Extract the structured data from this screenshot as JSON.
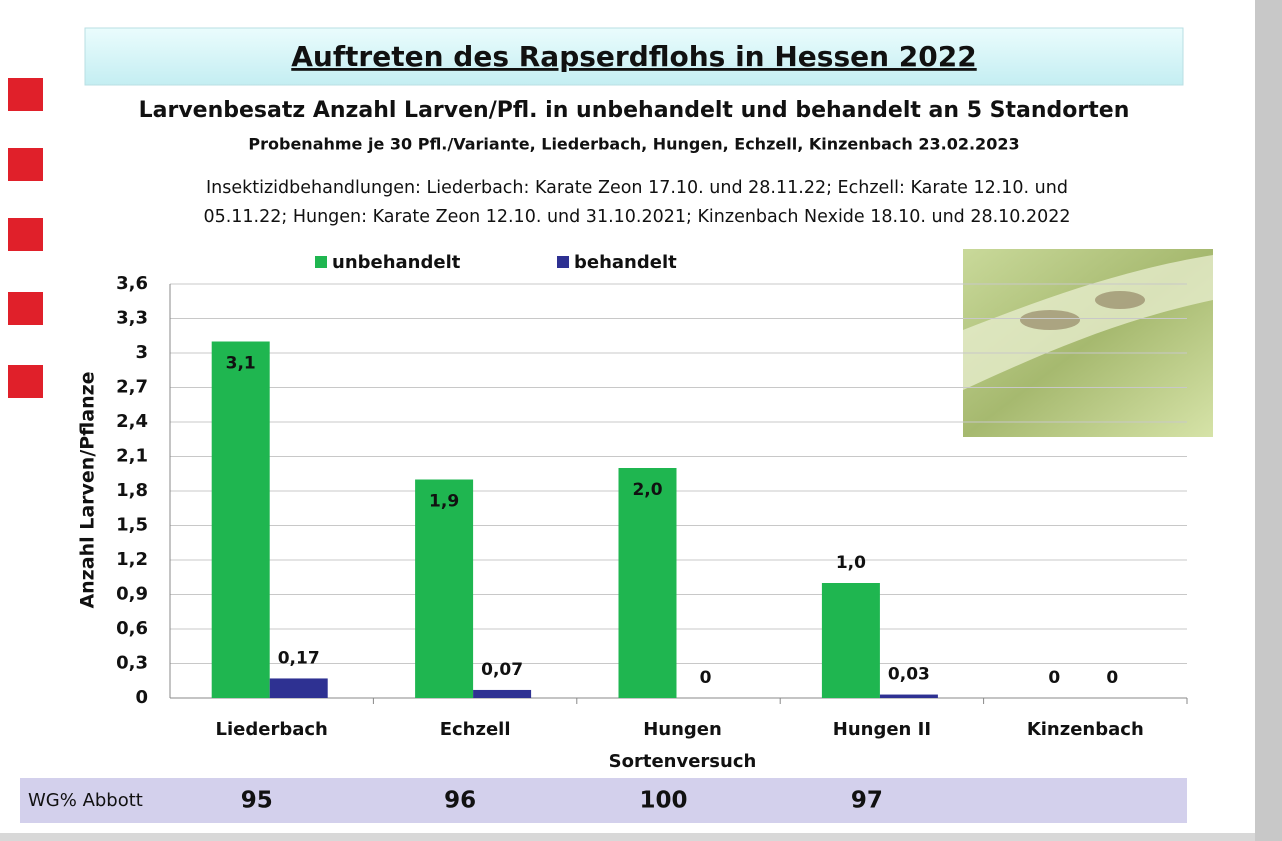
{
  "chart_data": {
    "type": "bar",
    "title": "Auftreten des Rapserdflohs in Hessen 2022",
    "subtitle": "Larvenbesatz Anzahl Larven/Pfl. in unbehandelt und behandelt an 5 Standorten",
    "subtitle2": "Probenahme je 30 Pfl./Variante, Liederbach, Hungen, Echzell, Kinzenbach 23.02.2023",
    "notes": [
      "Insektizidbehandlungen: Liederbach: Karate Zeon 17.10. und 28.11.22; Echzell: Karate 12.10. und",
      "05.11.22; Hungen: Karate Zeon 12.10. und 31.10.2021; Kinzenbach Nexide 18.10. und 28.10.2022"
    ],
    "ylabel": "Anzahl Larven/Pflanze",
    "categories": [
      "Liederbach",
      "Echzell",
      [
        "Hungen",
        "Sortenversuch"
      ],
      "Hungen II",
      "Kinzenbach"
    ],
    "series": [
      {
        "name": "unbehandelt",
        "color": "#1fb650",
        "values": [
          3.1,
          1.9,
          2.0,
          1.0,
          0
        ],
        "value_labels": [
          "3,1",
          "1,9",
          "2,0",
          "1,0",
          "0"
        ]
      },
      {
        "name": "behandelt",
        "color": "#2e3192",
        "values": [
          0.17,
          0.07,
          0,
          0.03,
          0
        ],
        "value_labels": [
          "0,17",
          "0,07",
          "0",
          "0,03",
          "0"
        ]
      }
    ],
    "ylim": [
      0,
      3.6
    ],
    "yticks": [
      0,
      {
        "value": 0.3,
        "label": "0,3"
      },
      {
        "value": 0.6,
        "label": "0,6"
      },
      {
        "value": 0.9,
        "label": "0,9"
      },
      {
        "value": 1.2,
        "label": "1,2"
      },
      {
        "value": 1.5,
        "label": "1,5"
      },
      {
        "value": 1.8,
        "label": "1,8"
      },
      {
        "value": 2.1,
        "label": "2,1"
      },
      {
        "value": 2.4,
        "label": "2,4"
      },
      {
        "value": 2.7,
        "label": "2,7"
      },
      3,
      {
        "value": 3.3,
        "label": "3,3"
      },
      {
        "value": 3.6,
        "label": "3,6"
      }
    ],
    "grid": true,
    "abbott": {
      "label": "WG% Abbott",
      "values": [
        95,
        96,
        100,
        97,
        null
      ]
    }
  }
}
